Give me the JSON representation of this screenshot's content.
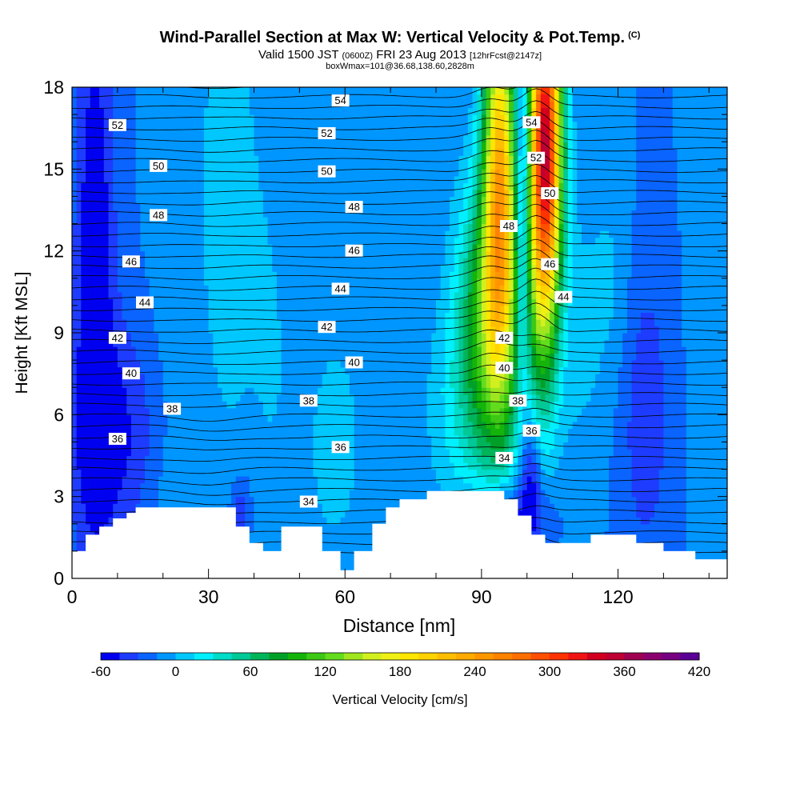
{
  "chart_data": {
    "type": "heatmap",
    "title": "Wind-Parallel Section at Max W: Vertical Velocity & Pot.Temp.",
    "title_mark": "(C)",
    "subtitle_parts": {
      "a": "Valid 1500 JST",
      "b": "(0600Z)",
      "c": "FRI 23 Aug 2013",
      "d": "[12hrFcst@2147z]"
    },
    "subtitle2": "boxWmax=101@36.68,138.60,2828m",
    "xlabel": "Distance [nm]",
    "ylabel": "Height [Kft MSL]",
    "xlim": [
      0,
      144
    ],
    "ylim": [
      0,
      18
    ],
    "xticks": [
      "0",
      "30",
      "60",
      "90",
      "120"
    ],
    "yticks": [
      "0",
      "3",
      "6",
      "9",
      "12",
      "15",
      "18"
    ],
    "colorbar": {
      "label": "Vertical Velocity [cm/s]",
      "tick_labels": [
        "-60",
        "0",
        "60",
        "120",
        "180",
        "240",
        "300",
        "360",
        "420"
      ],
      "levels": [
        -60,
        -45,
        -30,
        -15,
        0,
        15,
        30,
        45,
        60,
        75,
        90,
        105,
        120,
        135,
        150,
        165,
        180,
        195,
        210,
        225,
        240,
        255,
        270,
        285,
        300,
        315,
        330,
        345,
        360,
        375,
        390,
        405,
        420
      ],
      "colors": [
        "#0000f0",
        "#1e3cff",
        "#0a64ff",
        "#0096ff",
        "#00c8ff",
        "#00f0ff",
        "#00dcc8",
        "#00c896",
        "#00b45a",
        "#00a028",
        "#14b40a",
        "#3cc814",
        "#64dc1e",
        "#a0e61e",
        "#d2f01e",
        "#f0f014",
        "#ffe600",
        "#ffd200",
        "#ffbe00",
        "#ffaa00",
        "#ff9600",
        "#ff8200",
        "#ff6e00",
        "#ff5000",
        "#ff3200",
        "#f01414",
        "#d2001e",
        "#be0032",
        "#a00050",
        "#8c006e",
        "#780082",
        "#5a0096"
      ]
    },
    "theta_contour_labels": [
      {
        "v": "34",
        "x": 52,
        "y": 2.8
      },
      {
        "v": "34",
        "x": 95,
        "y": 4.4
      },
      {
        "v": "36",
        "x": 10,
        "y": 5.1
      },
      {
        "v": "36",
        "x": 59,
        "y": 4.8
      },
      {
        "v": "36",
        "x": 101,
        "y": 5.4
      },
      {
        "v": "38",
        "x": 22,
        "y": 6.2
      },
      {
        "v": "38",
        "x": 52,
        "y": 6.5
      },
      {
        "v": "38",
        "x": 98,
        "y": 6.5
      },
      {
        "v": "40",
        "x": 13,
        "y": 7.5
      },
      {
        "v": "40",
        "x": 62,
        "y": 7.9
      },
      {
        "v": "40",
        "x": 95,
        "y": 7.7
      },
      {
        "v": "42",
        "x": 10,
        "y": 8.8
      },
      {
        "v": "42",
        "x": 56,
        "y": 9.2
      },
      {
        "v": "42",
        "x": 95,
        "y": 8.8
      },
      {
        "v": "44",
        "x": 16,
        "y": 10.1
      },
      {
        "v": "44",
        "x": 59,
        "y": 10.6
      },
      {
        "v": "44",
        "x": 108,
        "y": 10.3
      },
      {
        "v": "46",
        "x": 13,
        "y": 11.6
      },
      {
        "v": "46",
        "x": 62,
        "y": 12.0
      },
      {
        "v": "46",
        "x": 105,
        "y": 11.5
      },
      {
        "v": "48",
        "x": 19,
        "y": 13.3
      },
      {
        "v": "48",
        "x": 62,
        "y": 13.6
      },
      {
        "v": "48",
        "x": 96,
        "y": 12.9
      },
      {
        "v": "50",
        "x": 19,
        "y": 15.1
      },
      {
        "v": "50",
        "x": 56,
        "y": 14.9
      },
      {
        "v": "50",
        "x": 105,
        "y": 14.1
      },
      {
        "v": "52",
        "x": 10,
        "y": 16.6
      },
      {
        "v": "52",
        "x": 56,
        "y": 16.3
      },
      {
        "v": "52",
        "x": 102,
        "y": 15.4
      },
      {
        "v": "54",
        "x": 59,
        "y": 17.5
      },
      {
        "v": "54",
        "x": 101,
        "y": 16.7
      }
    ],
    "terrain_profile": [
      [
        0,
        1
      ],
      [
        3,
        1
      ],
      [
        3,
        1.6
      ],
      [
        6,
        1.6
      ],
      [
        6,
        1.9
      ],
      [
        9,
        1.9
      ],
      [
        9,
        2.2
      ],
      [
        12,
        2.2
      ],
      [
        12,
        2.4
      ],
      [
        14,
        2.4
      ],
      [
        14,
        2.6
      ],
      [
        36,
        2.6
      ],
      [
        36,
        1.9
      ],
      [
        39,
        1.9
      ],
      [
        39,
        1.3
      ],
      [
        42,
        1.3
      ],
      [
        42,
        1.0
      ],
      [
        46,
        1.0
      ],
      [
        46,
        1.9
      ],
      [
        55,
        1.9
      ],
      [
        55,
        1.0
      ],
      [
        59,
        1.0
      ],
      [
        59,
        0.3
      ],
      [
        62,
        0.3
      ],
      [
        62,
        1.0
      ],
      [
        66,
        1.0
      ],
      [
        66,
        2.0
      ],
      [
        69,
        2.0
      ],
      [
        69,
        2.6
      ],
      [
        72,
        2.6
      ],
      [
        72,
        2.9
      ],
      [
        78,
        2.9
      ],
      [
        78,
        3.2
      ],
      [
        95,
        3.2
      ],
      [
        95,
        2.9
      ],
      [
        98,
        2.9
      ],
      [
        98,
        2.3
      ],
      [
        101,
        2.3
      ],
      [
        101,
        1.6
      ],
      [
        104,
        1.6
      ],
      [
        104,
        1.3
      ],
      [
        114,
        1.3
      ],
      [
        114,
        1.6
      ],
      [
        124,
        1.6
      ],
      [
        124,
        1.3
      ],
      [
        130,
        1.3
      ],
      [
        130,
        1.0
      ],
      [
        137,
        1.0
      ],
      [
        137,
        0.7
      ],
      [
        144,
        0.7
      ]
    ],
    "w_field": {
      "background_cm_s": -15,
      "features": [
        {
          "x": 5,
          "y": 12,
          "sx": 3,
          "sy": 7,
          "w": -45
        },
        {
          "x": 9,
          "y": 5,
          "sx": 7,
          "sy": 3,
          "w": -35
        },
        {
          "x": 21,
          "y": 10,
          "sx": 3,
          "sy": 8,
          "w": 8
        },
        {
          "x": 34,
          "y": 14,
          "sx": 5,
          "sy": 7,
          "w": 25
        },
        {
          "x": 44,
          "y": 9,
          "sx": 4,
          "sy": 6,
          "w": 12
        },
        {
          "x": 28,
          "y": 2.4,
          "sx": 10,
          "sy": 1.8,
          "w": 10
        },
        {
          "x": 37,
          "y": 2.5,
          "sx": 2,
          "sy": 1,
          "w": -35
        },
        {
          "x": 58,
          "y": 5,
          "sx": 7,
          "sy": 5,
          "w": 18
        },
        {
          "x": 92,
          "y": 10,
          "sx": 5,
          "sy": 3.5,
          "w": 110
        },
        {
          "x": 94,
          "y": 15,
          "sx": 2.5,
          "sy": 5,
          "w": 220
        },
        {
          "x": 90,
          "y": 6,
          "sx": 8,
          "sy": 3,
          "w": 40
        },
        {
          "x": 104,
          "y": 16,
          "sx": 2.5,
          "sy": 4.5,
          "w": 360
        },
        {
          "x": 103,
          "y": 10,
          "sx": 2.5,
          "sy": 3.5,
          "w": 40
        },
        {
          "x": 99,
          "y": 14,
          "sx": 1.2,
          "sy": 5,
          "w": -70
        },
        {
          "x": 101,
          "y": 4,
          "sx": 1.5,
          "sy": 1.8,
          "w": -45
        },
        {
          "x": 96,
          "y": 2.4,
          "sx": 6,
          "sy": 1,
          "w": -40
        },
        {
          "x": 112,
          "y": 9,
          "sx": 4,
          "sy": 4,
          "w": 18
        },
        {
          "x": 119,
          "y": 11,
          "sx": 3,
          "sy": 3,
          "w": 15
        },
        {
          "x": 126,
          "y": 6,
          "sx": 4,
          "sy": 4,
          "w": -25
        },
        {
          "x": 140,
          "y": 10,
          "sx": 3,
          "sy": 6,
          "w": 12
        }
      ]
    }
  }
}
